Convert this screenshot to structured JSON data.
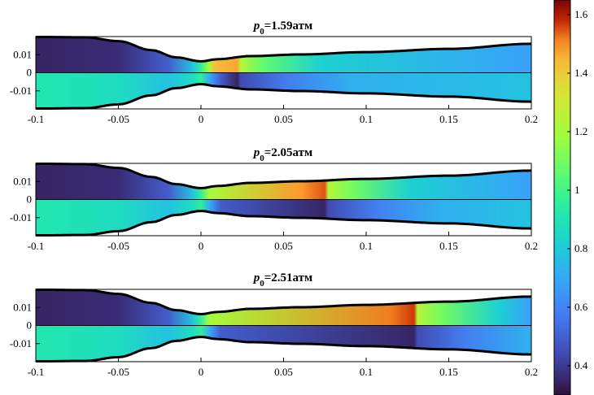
{
  "chart_data": {
    "type": "heatmap",
    "colormap": "turbo",
    "colorbar": {
      "range": [
        0.3,
        1.65
      ],
      "ticks": [
        0.4,
        0.6,
        0.8,
        1,
        1.2,
        1.4,
        1.6
      ],
      "tick_labels": [
        "0.4",
        "0.6",
        "0.8",
        "1",
        "1.2",
        "1.4",
        "1.6"
      ],
      "position": "right"
    },
    "x_ticks": [
      -0.1,
      -0.05,
      0,
      0.05,
      0.1,
      0.15,
      0.2
    ],
    "x_tick_labels": [
      "-0.1",
      "-0.05",
      "0",
      "0.05",
      "0.1",
      "0.15",
      "0.2"
    ],
    "y_ticks": [
      0.01,
      0,
      -0.01
    ],
    "y_tick_labels": [
      "0.01",
      "0",
      "-0.01"
    ],
    "xlim": [
      -0.1,
      0.2
    ],
    "ylim": [
      -0.02,
      0.02
    ],
    "wall_profile": {
      "x": [
        -0.1,
        -0.07,
        -0.05,
        -0.03,
        -0.015,
        0.0,
        0.01,
        0.03,
        0.06,
        0.1,
        0.15,
        0.2
      ],
      "half_height": [
        0.0198,
        0.0196,
        0.0175,
        0.0125,
        0.0085,
        0.0063,
        0.0075,
        0.0092,
        0.0101,
        0.0114,
        0.0132,
        0.016
      ]
    },
    "panels": [
      {
        "title_prefix": "p",
        "title_subscript": "0",
        "title_suffix": "=1.59атм",
        "shock_x": 0.023,
        "peak_value": 1.55,
        "post_shock_value": 1.05,
        "upstream_value": 0.35,
        "lower_upstream_value": 0.95
      },
      {
        "title_prefix": "p",
        "title_subscript": "0",
        "title_suffix": "=2.05атм",
        "shock_x": 0.076,
        "peak_value": 1.62,
        "post_shock_value": 1.1,
        "upstream_value": 0.35,
        "lower_upstream_value": 0.95
      },
      {
        "title_prefix": "p",
        "title_subscript": "0",
        "title_suffix": "=2.51атм",
        "shock_x": 0.13,
        "peak_value": 1.64,
        "post_shock_value": 1.1,
        "upstream_value": 0.35,
        "lower_upstream_value": 0.95
      }
    ]
  }
}
